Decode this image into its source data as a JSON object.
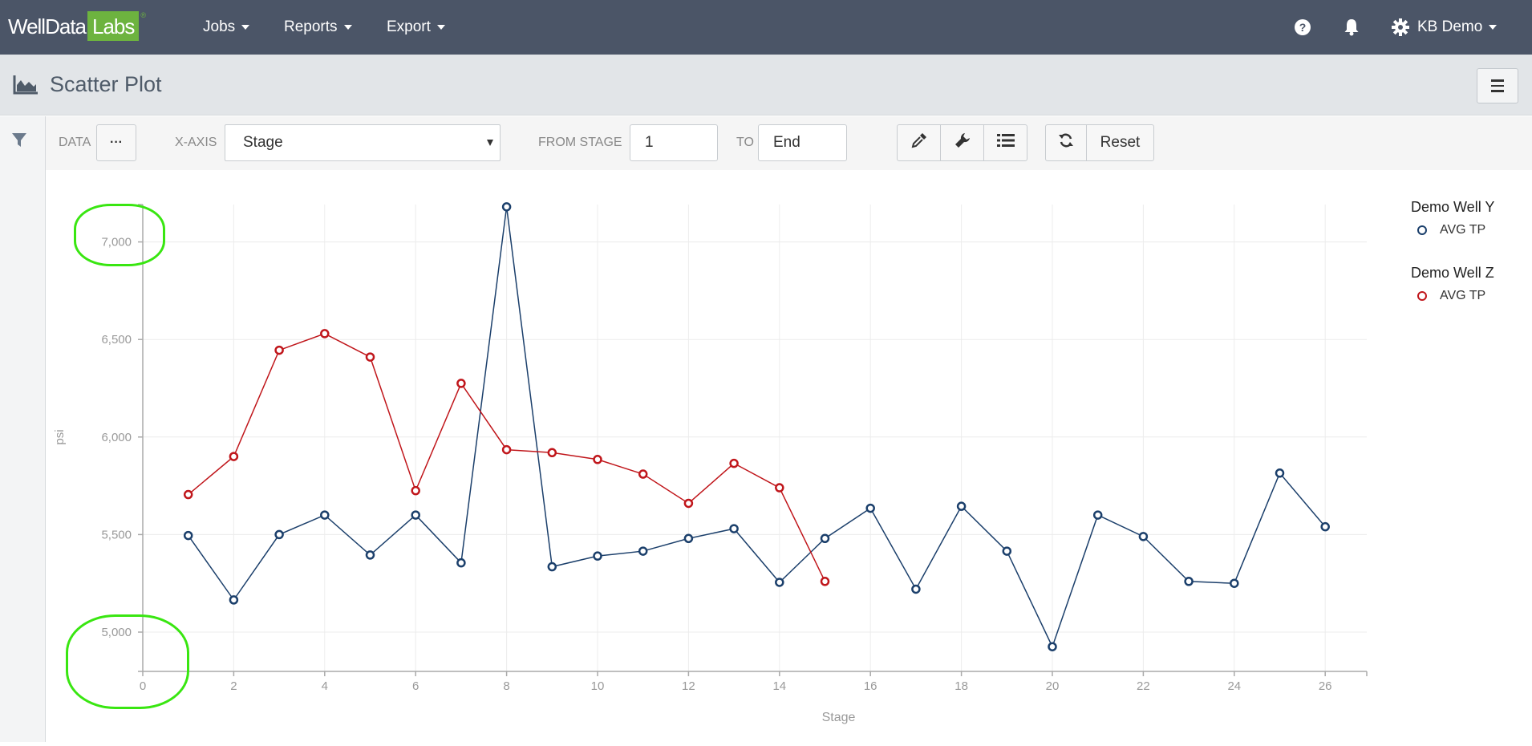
{
  "brand": {
    "part1": "WellData",
    "part2": "Labs",
    "reg": "®"
  },
  "nav": {
    "jobs": "Jobs",
    "reports": "Reports",
    "export": "Export",
    "user": "KB Demo",
    "icons": [
      "question-circle-icon",
      "bell-icon",
      "gear-icon"
    ]
  },
  "page": {
    "title": "Scatter Plot",
    "icon": "area-chart-icon"
  },
  "toolbar": {
    "data_label": "DATA",
    "data_button": "···",
    "xaxis_label": "X-AXIS",
    "xaxis_value": "Stage",
    "from_label": "FROM STAGE",
    "from_value": "1",
    "to_label": "TO",
    "to_value": "End",
    "tool_icons": [
      "eyedropper-icon",
      "wrench-icon",
      "list-icon",
      "refresh-icon"
    ],
    "reset_label": "Reset"
  },
  "colors": {
    "navbar": "#4b5567",
    "brand_green": "#6db33f",
    "well_y": "#1b3f6b",
    "well_z": "#c0161b",
    "annotation": "#39e611"
  },
  "chart_data": {
    "type": "line",
    "xlabel": "Stage",
    "ylabel": "psi",
    "xlim": [
      0,
      27
    ],
    "ylim": [
      4800,
      7200
    ],
    "xticks": [
      0,
      2,
      4,
      6,
      8,
      10,
      12,
      14,
      16,
      18,
      20,
      22,
      24,
      26
    ],
    "yticks": [
      5000,
      5500,
      6000,
      6500,
      7000
    ],
    "ytick_labels": [
      "5,000",
      "5,500",
      "6,000",
      "6,500",
      "7,000"
    ],
    "grid": true,
    "legend_position": "right",
    "series": [
      {
        "group": "Demo Well Y",
        "name": "AVG TP",
        "color": "#1b3f6b",
        "x": [
          1,
          2,
          3,
          4,
          5,
          6,
          7,
          8,
          9,
          10,
          11,
          12,
          13,
          14,
          15,
          16,
          17,
          18,
          19,
          20,
          21,
          22,
          23,
          24,
          25,
          26
        ],
        "values": [
          5495,
          5165,
          5500,
          5600,
          5395,
          5600,
          5355,
          7180,
          5335,
          5390,
          5415,
          5480,
          5530,
          5255,
          5480,
          5635,
          5220,
          5645,
          5415,
          4925,
          5600,
          5490,
          5260,
          5250,
          5815,
          5540
        ]
      },
      {
        "group": "Demo Well Z",
        "name": "AVG TP",
        "color": "#c0161b",
        "x": [
          1,
          2,
          3,
          4,
          5,
          6,
          7,
          8,
          9,
          10,
          11,
          12,
          13,
          14,
          15
        ],
        "values": [
          5705,
          5900,
          6445,
          6530,
          6410,
          5725,
          6275,
          5935,
          5920,
          5885,
          5810,
          5660,
          5865,
          5740,
          5260
        ]
      }
    ]
  }
}
